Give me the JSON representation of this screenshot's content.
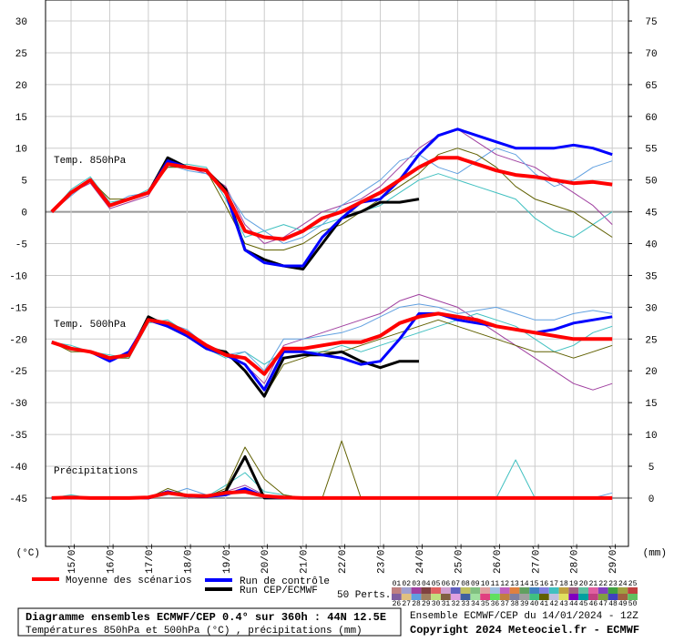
{
  "chart_data": {
    "type": "line",
    "title": "Diagramme ensembles ECMWF/CEP 0.4° sur 360h : 44N 12.5E",
    "subtitle": "Températures 850hPa et 500hPa (°C) , précipitations (mm)",
    "run_info": "Ensemble ECMWF/CEP du 14/01/2024 - 12Z",
    "copyright": "Copyright 2024 Meteociel.fr - ECMWF",
    "ylabel": "(°C)",
    "y2label": "(mm)",
    "annotations": [
      "Temp. 850hPa",
      "Temp. 500hPa",
      "Précipitations"
    ],
    "members_label": "50 Perts.",
    "grid": true,
    "x": [
      14.5,
      15,
      15.5,
      16,
      16.5,
      17,
      17.5,
      18,
      18.5,
      19,
      19.5,
      20,
      20.5,
      21,
      21.5,
      22,
      22.5,
      23,
      23.5,
      24,
      24.5,
      25,
      25.5,
      26,
      26.5,
      27,
      27.5,
      28,
      28.5,
      29
    ],
    "xlim": [
      14.34,
      29.42
    ],
    "xticks": [
      {
        "value": 15,
        "label": "15/01"
      },
      {
        "value": 16,
        "label": "16/01"
      },
      {
        "value": 17,
        "label": "17/01"
      },
      {
        "value": 18,
        "label": "18/01"
      },
      {
        "value": 19,
        "label": "19/01"
      },
      {
        "value": 20,
        "label": "20/01"
      },
      {
        "value": 21,
        "label": "21/01"
      },
      {
        "value": 22,
        "label": "22/01"
      },
      {
        "value": 23,
        "label": "23/01"
      },
      {
        "value": 24,
        "label": "24/01"
      },
      {
        "value": 25,
        "label": "25/01"
      },
      {
        "value": 26,
        "label": "26/01"
      },
      {
        "value": 27,
        "label": "27/01"
      },
      {
        "value": 28,
        "label": "28/01"
      },
      {
        "value": 29,
        "label": "29/01"
      }
    ],
    "ylim": [
      -52.6,
      33.3
    ],
    "yticks": [
      30,
      25,
      20,
      15,
      10,
      5,
      0,
      -5,
      -10,
      -15,
      -20,
      -25,
      -30,
      -35,
      -40,
      -45
    ],
    "y2lim": [
      -7.6,
      78.3
    ],
    "y2ticks": [
      75,
      70,
      65,
      60,
      55,
      50,
      45,
      40,
      35,
      30,
      25,
      20,
      15,
      10,
      5,
      0
    ],
    "series": [
      {
        "name": "Moyenne des scénarios",
        "color": "#ff0000",
        "width": 4,
        "t850": [
          0,
          3,
          5,
          1,
          2,
          3,
          7.5,
          7,
          6.5,
          3,
          -3,
          -4,
          -4.3,
          -3,
          -1,
          0,
          1.5,
          3,
          5,
          7,
          8.5,
          8.5,
          7.5,
          6.5,
          5.8,
          5.5,
          5,
          4.5,
          4.7,
          4.3
        ],
        "t500": [
          -20.5,
          -21.5,
          -22,
          -23,
          -22.5,
          -17,
          -17.5,
          -19,
          -21,
          -22.5,
          -23,
          -25.5,
          -21.5,
          -21.5,
          -21,
          -20.5,
          -20.5,
          -19.5,
          -17.5,
          -16.5,
          -16,
          -16.5,
          -17,
          -18,
          -18.5,
          -19,
          -19.5,
          -20,
          -20,
          -20
        ],
        "precip": [
          0,
          0.1,
          0,
          0,
          0,
          0.1,
          0.8,
          0.4,
          0.3,
          0.8,
          1,
          0.3,
          0.1,
          0,
          0,
          0,
          0,
          0,
          0,
          0,
          0,
          0,
          0,
          0,
          0,
          0,
          0,
          0,
          0,
          0
        ]
      },
      {
        "name": "Run de contrôle",
        "color": "#0000ff",
        "width": 3,
        "t850": [
          0,
          3,
          5,
          1,
          2,
          3,
          8,
          7,
          6.5,
          3,
          -6,
          -8,
          -8.5,
          -8.5,
          -4,
          -1,
          1.5,
          2,
          5,
          9,
          12,
          13,
          12,
          11,
          10,
          10,
          10,
          10.5,
          10,
          9
        ],
        "t500": [
          -20.5,
          -21.5,
          -22,
          -23.5,
          -22,
          -17,
          -18,
          -19.5,
          -21.5,
          -22.5,
          -24,
          -28,
          -22,
          -22,
          -22.5,
          -23,
          -24,
          -23.5,
          -20,
          -16,
          -16,
          -17,
          -17.5,
          -18,
          -18.5,
          -19,
          -18.5,
          -17.5,
          -17,
          -16.5
        ],
        "precip": [
          0,
          0,
          0,
          0,
          0,
          0,
          1,
          0.3,
          0.2,
          0.5,
          1.5,
          0.2,
          0,
          0,
          0,
          0,
          0,
          0,
          0,
          0,
          0,
          0,
          0,
          0,
          0,
          0,
          0,
          0,
          0,
          0
        ]
      },
      {
        "name": "Run CEP/ECMWF",
        "color": "#000000",
        "width": 3,
        "t850": [
          0,
          3,
          5,
          1,
          2,
          3,
          8.5,
          7,
          6.5,
          3.5,
          -6,
          -7.5,
          -8.5,
          -9,
          -5,
          -1,
          0,
          1.5,
          1.5,
          2,
          null,
          null,
          null,
          null,
          null,
          null,
          null,
          null,
          null,
          null
        ],
        "t500": [
          -20.5,
          -21.5,
          -22,
          -23,
          -22.5,
          -16.5,
          -18,
          -19.5,
          -21.5,
          -22,
          -25,
          -29,
          -23,
          -22.5,
          -22.5,
          -22,
          -23.5,
          -24.5,
          -23.5,
          -23.5,
          null,
          null,
          null,
          null,
          null,
          null,
          null,
          null,
          null,
          null
        ],
        "precip": [
          0,
          0,
          0,
          0,
          0,
          0,
          1,
          0.3,
          0.2,
          1,
          6.5,
          0,
          0,
          0,
          0,
          0,
          0,
          0,
          0,
          0,
          null,
          null,
          null,
          null,
          null,
          null,
          null,
          null,
          null,
          null
        ]
      }
    ],
    "members": [
      {
        "name": "01",
        "color": "#c08080"
      },
      {
        "name": "02",
        "color": "#a0a0d0"
      },
      {
        "name": "03",
        "color": "#a040a0",
        "t850": [
          0,
          3,
          4.5,
          0.5,
          1.5,
          2.5,
          8,
          7,
          6,
          4,
          -2,
          -5,
          -4,
          -2,
          0,
          1,
          2,
          4,
          7,
          10,
          12,
          13,
          11,
          9,
          8,
          7,
          5,
          3,
          1,
          -2
        ],
        "t500": [
          -20.5,
          -21.5,
          -22,
          -23.5,
          -22,
          -17,
          -18,
          -19.5,
          -21,
          -22,
          -24,
          -27,
          -21,
          -20,
          -19,
          -18,
          -17,
          -16,
          -14,
          -13,
          -14,
          -15,
          -17,
          -19,
          -21,
          -23,
          -25,
          -27,
          -28,
          -27
        ],
        "precip": [
          0,
          0,
          0,
          0,
          0,
          0,
          1,
          0.5,
          0.3,
          1,
          2,
          0.5,
          0.2,
          0,
          0,
          0,
          0,
          0,
          0,
          0,
          0,
          0,
          0,
          0,
          0,
          0,
          0,
          0,
          0,
          0
        ]
      },
      {
        "name": "04",
        "color": "#804040"
      },
      {
        "name": "05",
        "color": "#e06060"
      },
      {
        "name": "06",
        "color": "#d0a0d0"
      },
      {
        "name": "07",
        "color": "#6060c0"
      },
      {
        "name": "08",
        "color": "#c0c060"
      },
      {
        "name": "09",
        "color": "#80c080"
      },
      {
        "name": "10",
        "color": "#e0a0a0"
      },
      {
        "name": "11",
        "color": "#a0c0e0"
      },
      {
        "name": "12",
        "color": "#c060c0"
      },
      {
        "name": "13",
        "color": "#e08040"
      },
      {
        "name": "14",
        "color": "#60a060"
      },
      {
        "name": "15",
        "color": "#4080c0"
      },
      {
        "name": "16",
        "color": "#8080e0"
      },
      {
        "name": "17",
        "color": "#40c0c0",
        "t850": [
          0,
          3.5,
          5.5,
          1.5,
          2,
          3.5,
          7,
          7.5,
          7,
          2,
          -4,
          -3,
          -2,
          -3,
          -2,
          -1,
          0,
          1,
          3,
          5,
          6,
          5,
          4,
          3,
          2,
          -1,
          -3,
          -4,
          -2,
          0
        ],
        "t500": [
          -20.5,
          -21,
          -22,
          -22.5,
          -23,
          -17.5,
          -17,
          -19,
          -21.5,
          -23,
          -22,
          -24,
          -22,
          -22,
          -22,
          -21,
          -22,
          -21,
          -20,
          -19,
          -18,
          -17,
          -16,
          -17,
          -18,
          -20,
          -22,
          -21,
          -19,
          -18
        ],
        "precip": [
          0,
          0.5,
          0,
          0,
          0,
          0,
          0.8,
          0.3,
          0.2,
          2,
          4,
          1,
          0.5,
          0,
          0,
          0,
          0,
          0,
          0,
          0,
          0,
          0,
          0,
          0,
          6,
          0,
          0,
          0,
          0,
          0
        ]
      },
      {
        "name": "18",
        "color": "#c0a040"
      },
      {
        "name": "19",
        "color": "#a06080"
      },
      {
        "name": "20",
        "color": "#60c0a0"
      },
      {
        "name": "21",
        "color": "#e060a0"
      },
      {
        "name": "22",
        "color": "#8040c0"
      },
      {
        "name": "23",
        "color": "#40a040"
      },
      {
        "name": "24",
        "color": "#a0a040"
      },
      {
        "name": "25",
        "color": "#c04040"
      },
      {
        "name": "26",
        "color": "#8060a0"
      },
      {
        "name": "27",
        "color": "#e0c080"
      },
      {
        "name": "28",
        "color": "#60a0e0",
        "t850": [
          0,
          2.5,
          5,
          1,
          2.5,
          3,
          7.5,
          6.5,
          6,
          3.5,
          -1,
          -3,
          -5,
          -4,
          -2,
          1,
          3,
          5,
          8,
          9,
          7,
          6,
          8,
          10,
          9,
          6,
          4,
          5,
          7,
          8
        ],
        "t500": [
          -20.5,
          -21.5,
          -22,
          -23,
          -22.5,
          -16.5,
          -17.5,
          -18.5,
          -21,
          -22.5,
          -22,
          -25,
          -20,
          -20,
          -19.5,
          -19,
          -18,
          -16.5,
          -15,
          -14.5,
          -15,
          -16,
          -15.5,
          -15,
          -16,
          -17,
          -17,
          -16,
          -15.5,
          -16
        ],
        "precip": [
          0,
          0,
          0,
          0,
          0,
          0,
          0.5,
          1.5,
          0.5,
          0.5,
          1,
          0.2,
          0,
          0,
          0,
          0,
          0,
          0,
          0,
          0,
          0,
          0,
          0,
          0,
          0,
          0,
          0,
          0,
          0,
          0.8
        ]
      },
      {
        "name": "29",
        "color": "#a08060"
      },
      {
        "name": "30",
        "color": "#c0e080"
      },
      {
        "name": "31",
        "color": "#806040"
      },
      {
        "name": "32",
        "color": "#e0a0e0"
      },
      {
        "name": "33",
        "color": "#4060a0"
      },
      {
        "name": "34",
        "color": "#a0e0a0"
      },
      {
        "name": "35",
        "color": "#e04080"
      },
      {
        "name": "36",
        "color": "#60e060"
      },
      {
        "name": "37",
        "color": "#c08040"
      },
      {
        "name": "38",
        "color": "#8080a0"
      },
      {
        "name": "39",
        "color": "#a0a0a0"
      },
      {
        "name": "40",
        "color": "#40c080"
      },
      {
        "name": "41",
        "color": "#606000",
        "t850": [
          0,
          3,
          5,
          2,
          2,
          3,
          7,
          7,
          6.5,
          1,
          -5,
          -6,
          -6,
          -5,
          -3,
          -2,
          0,
          2,
          4,
          6,
          9,
          10,
          9,
          7,
          4,
          2,
          1,
          0,
          -2,
          -4
        ],
        "t500": [
          -20.5,
          -22,
          -22,
          -23,
          -23,
          -17,
          -18,
          -19,
          -21,
          -22,
          -25,
          -29,
          -24,
          -23,
          -22,
          -22,
          -21,
          -20,
          -19,
          -18,
          -17,
          -18,
          -19,
          -20,
          -21,
          -22,
          -22,
          -23,
          -22,
          -21
        ],
        "precip": [
          0,
          0,
          0,
          0,
          0,
          0,
          1.5,
          0.5,
          0.2,
          1.5,
          8,
          3,
          0.5,
          0,
          0,
          9,
          0,
          0,
          0,
          0,
          0,
          0,
          0,
          0,
          0,
          0,
          0,
          0,
          0,
          0
        ]
      },
      {
        "name": "42",
        "color": "#c0c0e0"
      },
      {
        "name": "43",
        "color": "#e0e060"
      },
      {
        "name": "44",
        "color": "#8000c0"
      },
      {
        "name": "45",
        "color": "#00a0a0"
      },
      {
        "name": "46",
        "color": "#c04080"
      },
      {
        "name": "47",
        "color": "#80a040"
      },
      {
        "name": "48",
        "color": "#4040c0"
      },
      {
        "name": "49",
        "color": "#a06040"
      },
      {
        "name": "50",
        "color": "#60c060"
      }
    ]
  }
}
